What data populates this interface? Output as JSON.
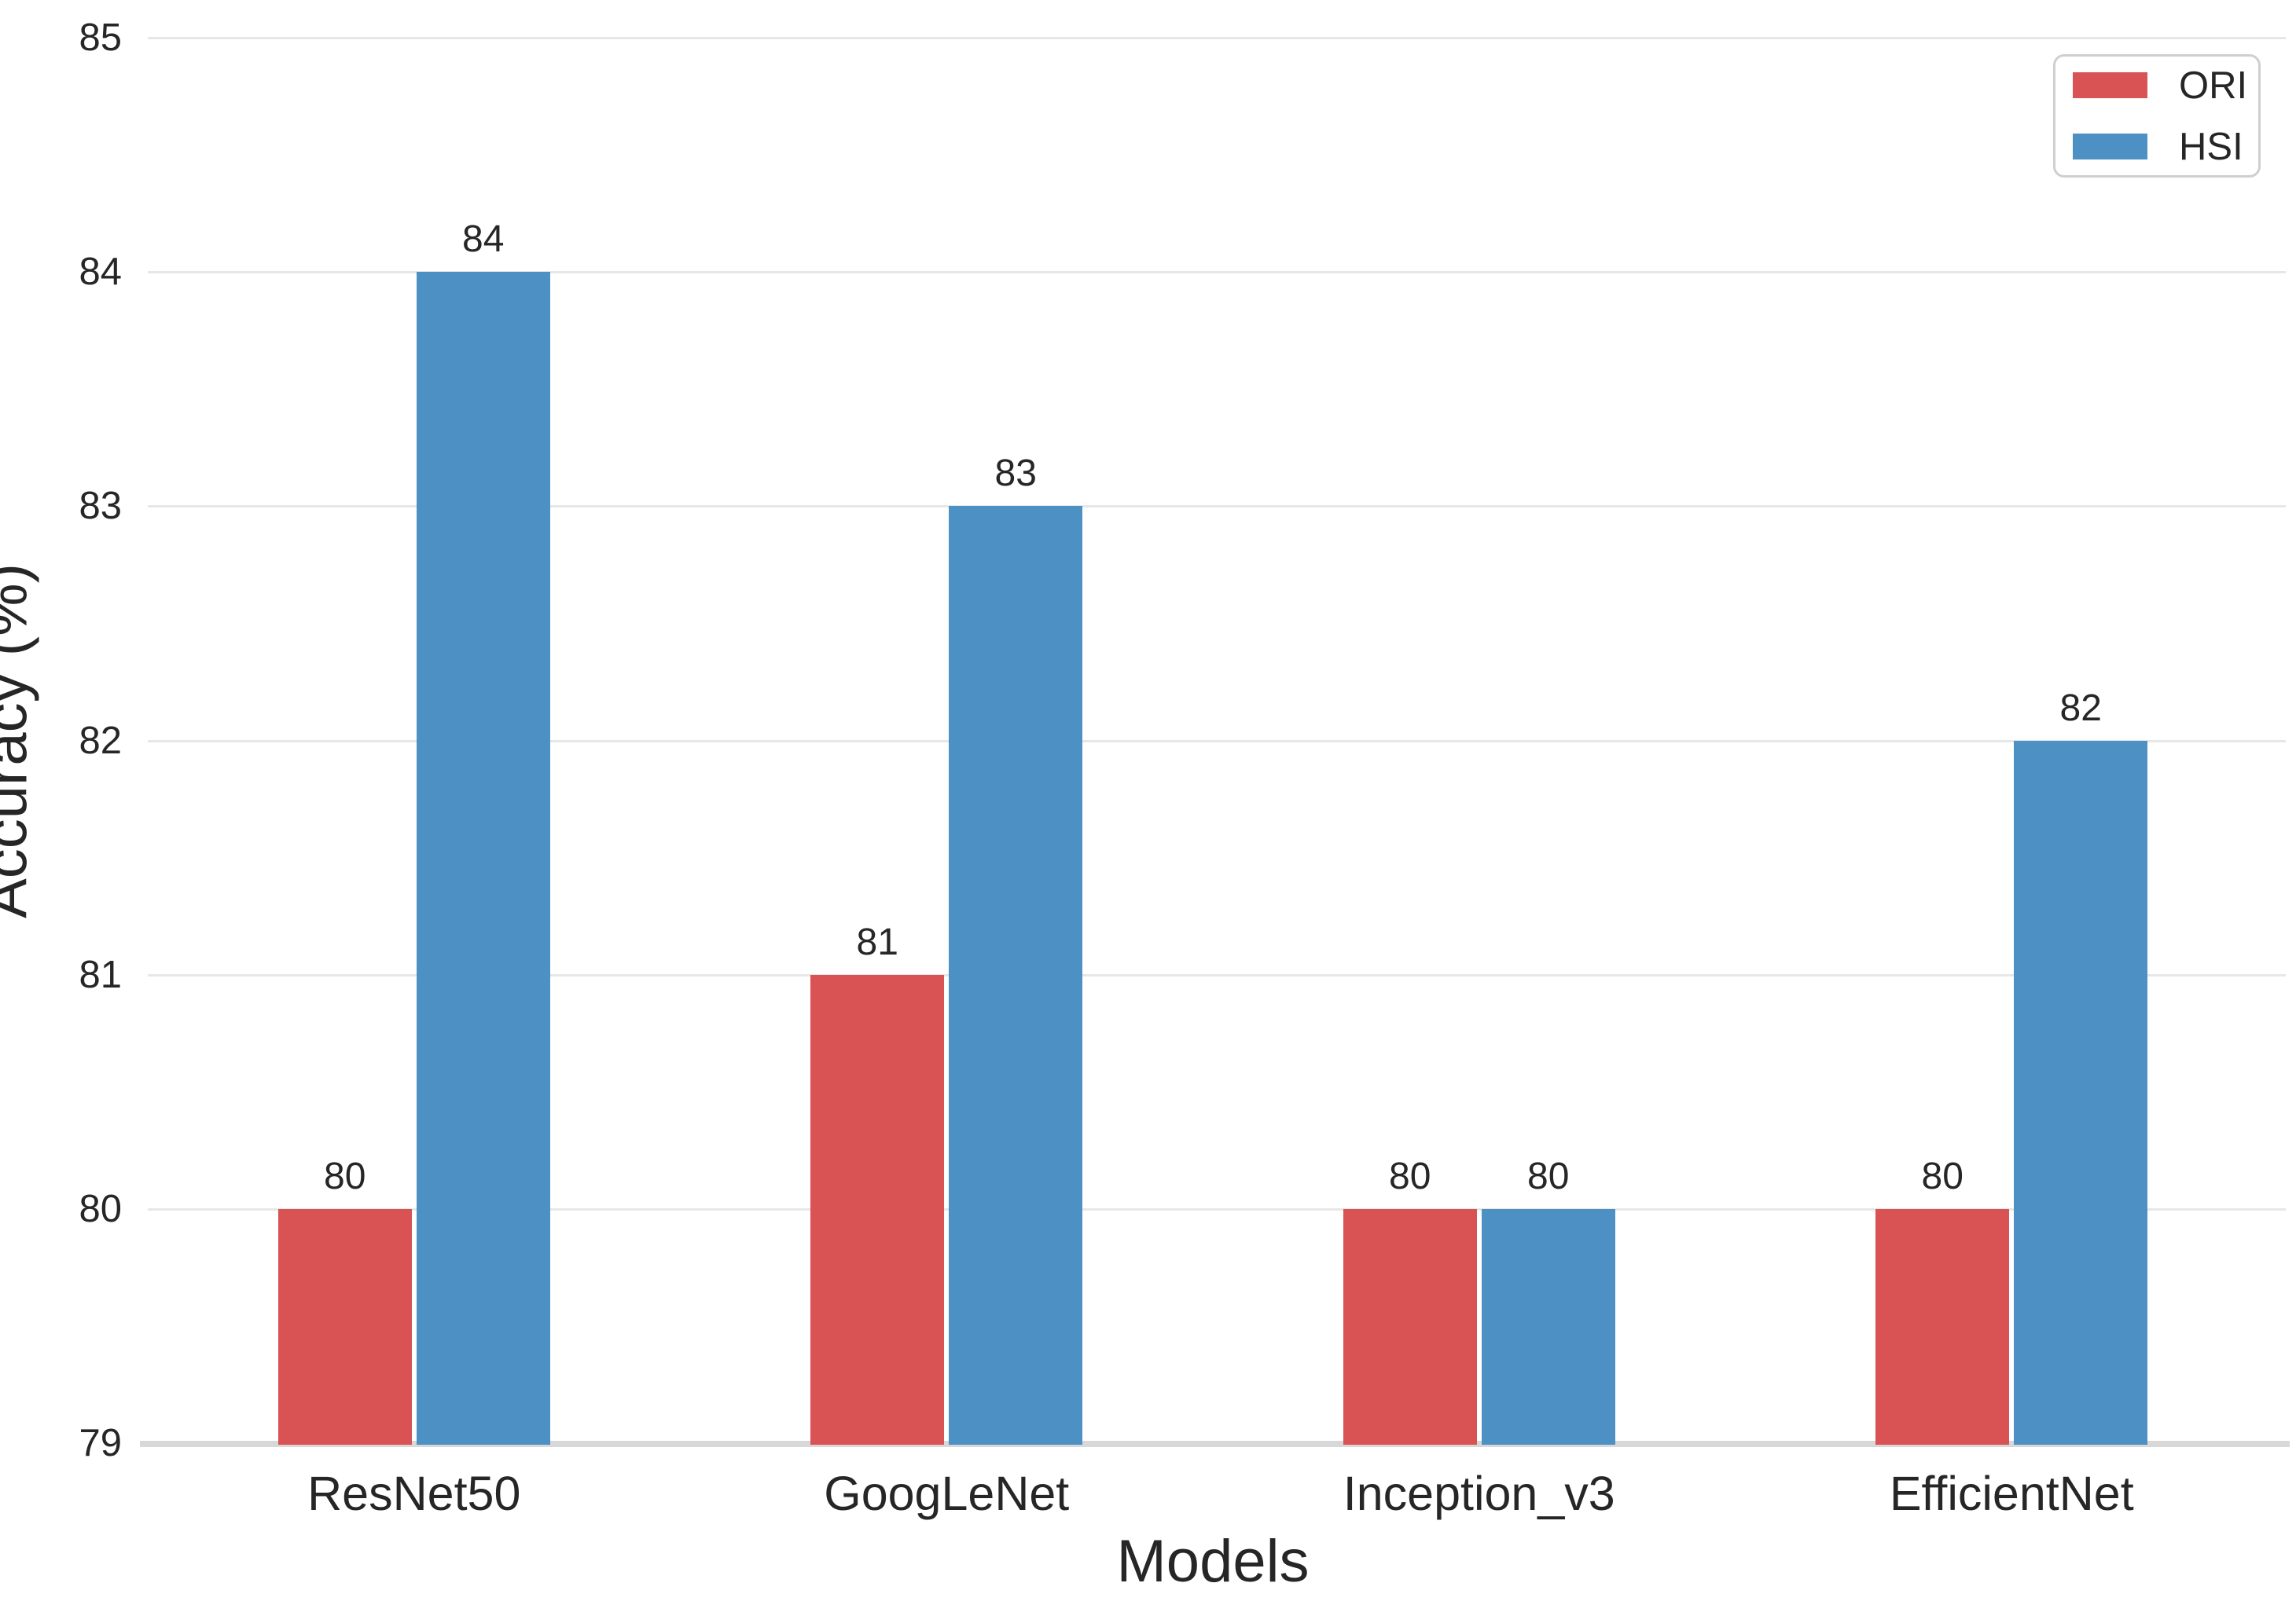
{
  "chart_data": {
    "type": "bar",
    "title": "",
    "xlabel": "Models",
    "ylabel": "Accuracy (%)",
    "categories": [
      "ResNet50",
      "GoogLeNet",
      "Inception_v3",
      "EfficientNet"
    ],
    "series": [
      {
        "name": "ORI",
        "color": "#d95254",
        "values": [
          80,
          81,
          80,
          80
        ]
      },
      {
        "name": "HSI",
        "color": "#4c90c4",
        "values": [
          84,
          83,
          80,
          82
        ]
      }
    ],
    "ylim": [
      79,
      85
    ],
    "yticks": [
      79,
      80,
      81,
      82,
      83,
      84,
      85
    ],
    "bar_value_labels": [
      {
        "category": "ResNet50",
        "ORI": "80",
        "HSI": "84"
      },
      {
        "category": "GoogLeNet",
        "ORI": "81",
        "HSI": "83"
      },
      {
        "category": "Inception_v3",
        "ORI": "80",
        "HSI": "80"
      },
      {
        "category": "EfficientNet",
        "ORI": "80",
        "HSI": "82"
      }
    ],
    "grid": "horizontal-light",
    "legend_position": "upper-right",
    "legend_entries": [
      "ORI",
      "HSI"
    ]
  },
  "colors": {
    "text": "#262626",
    "gridline": "#e7e7e7",
    "baseline": "#d8d8d8",
    "legend_border": "#cfcfcf",
    "background": "#ffffff"
  }
}
